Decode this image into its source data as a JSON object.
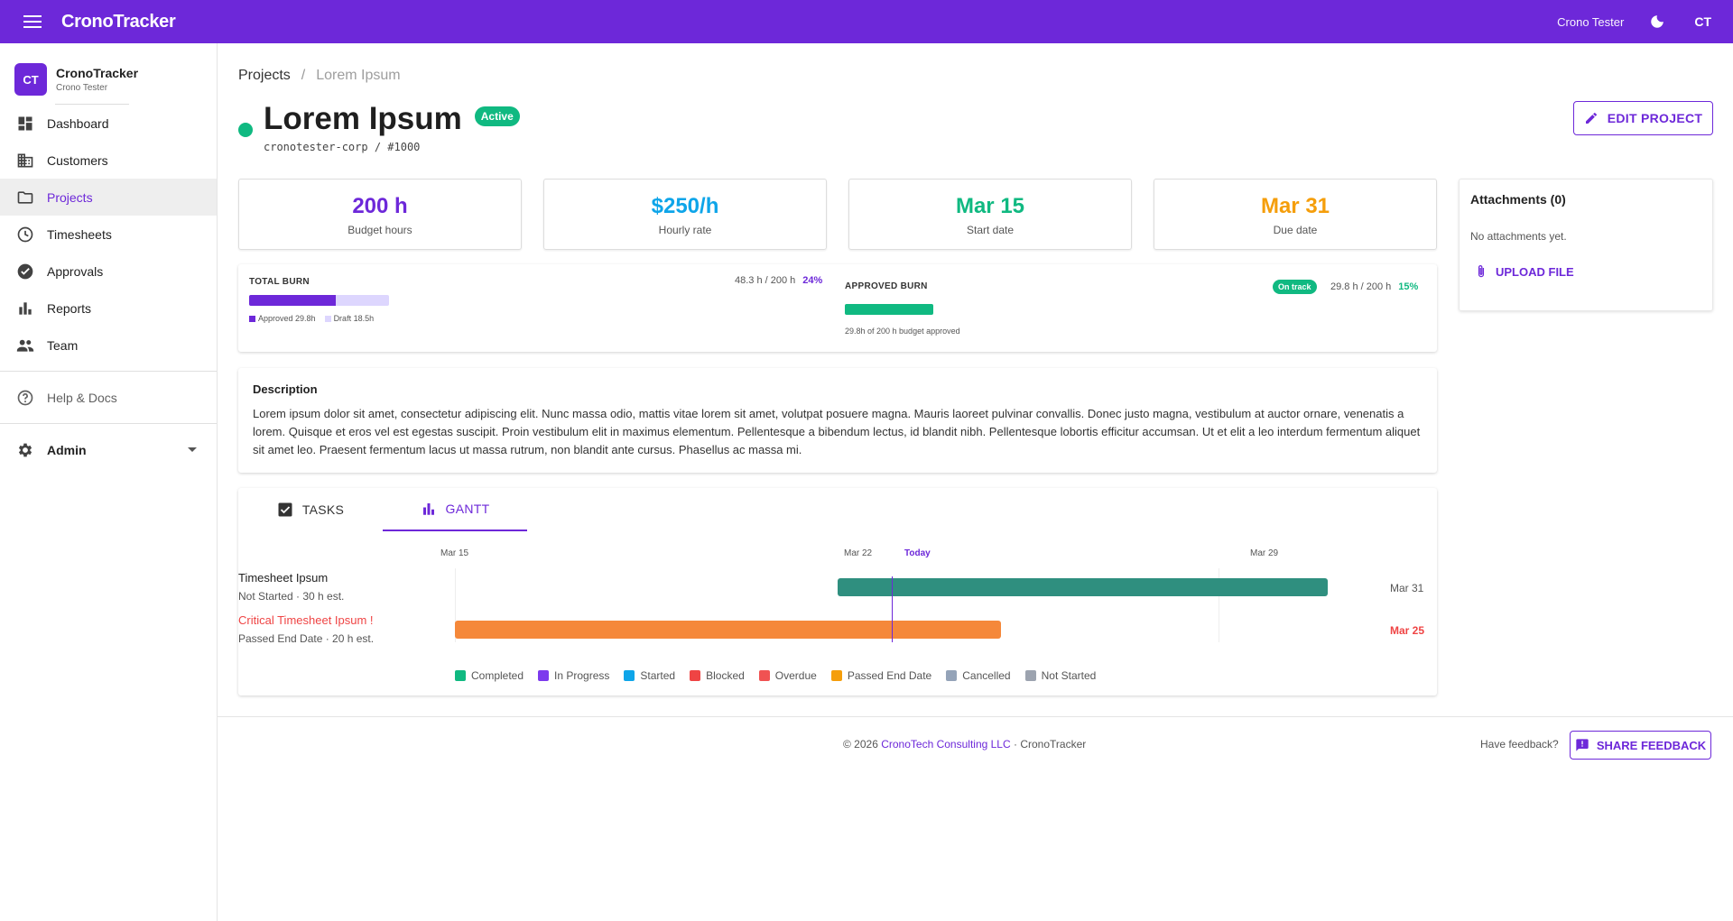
{
  "topbar": {
    "brand": "CronoTracker",
    "user_name": "Crono Tester",
    "initials": "CT"
  },
  "sidebar": {
    "org_initials": "CT",
    "org_name": "CronoTracker",
    "org_sub": "Crono Tester",
    "items": [
      {
        "label": "Dashboard",
        "icon": "dashboard-icon"
      },
      {
        "label": "Customers",
        "icon": "building-icon"
      },
      {
        "label": "Projects",
        "icon": "folder-icon"
      },
      {
        "label": "Timesheets",
        "icon": "clock-icon"
      },
      {
        "label": "Approvals",
        "icon": "check-circle-icon"
      },
      {
        "label": "Reports",
        "icon": "bar-chart-icon"
      },
      {
        "label": "Team",
        "icon": "people-icon"
      }
    ],
    "help": "Help & Docs",
    "admin": "Admin"
  },
  "breadcrumb": {
    "root": "Projects",
    "sep": "/",
    "current": "Lorem Ipsum"
  },
  "project": {
    "title": "Lorem Ipsum",
    "status": "Active",
    "subtitle": "cronotester-corp / #1000",
    "edit_label": "EDIT PROJECT"
  },
  "stats": [
    {
      "value": "200 h",
      "label": "Budget hours",
      "color": "#6d28d9"
    },
    {
      "value": "$250/h",
      "label": "Hourly rate",
      "color": "#0ea5e9"
    },
    {
      "value": "Mar 15",
      "label": "Start date",
      "color": "#10b981"
    },
    {
      "value": "Mar 31",
      "label": "Due date",
      "color": "#f59e0b"
    }
  ],
  "attachments": {
    "title": "Attachments (0)",
    "empty": "No attachments yet.",
    "upload": "UPLOAD FILE"
  },
  "burn": {
    "total": {
      "title": "TOTAL BURN",
      "stat": "48.3 h / 200 h",
      "pct": "24%",
      "approved_fraction": 0.149,
      "draft_fraction": 0.0925,
      "legend_approved": "Approved 29.8h",
      "legend_draft": "Draft 18.5h"
    },
    "approved": {
      "title": "APPROVED BURN",
      "badge": "On track",
      "stat": "29.8 h / 200 h",
      "pct": "15%",
      "fraction": 0.149,
      "note": "29.8h of 200 h budget approved"
    }
  },
  "description": {
    "title": "Description",
    "text": "Lorem ipsum dolor sit amet, consectetur adipiscing elit. Nunc massa odio, mattis vitae lorem sit amet, volutpat posuere magna. Mauris laoreet pulvinar convallis. Donec justo magna, vestibulum at auctor ornare, venenatis a lorem. Quisque et eros vel est egestas suscipit. Proin vestibulum elit in maximus elementum. Pellentesque a bibendum lectus, id blandit nibh. Pellentesque lobortis efficitur accumsan. Ut et elit a leo interdum fermentum aliquet sit amet leo. Praesent fermentum lacus ut massa rutrum, non blandit ante cursus. Phasellus ac massa mi."
  },
  "tabs": {
    "tasks": "TASKS",
    "gantt": "GANTT"
  },
  "gantt": {
    "axis": [
      "Mar 15",
      "Mar 22",
      "Today",
      "Mar 29"
    ],
    "tasks": [
      {
        "name": "Timesheet Ipsum",
        "sub": "Not Started · 30 h est.",
        "end": "Mar 31",
        "color": "#2f8f7f",
        "critical": false
      },
      {
        "name": "Critical Timesheet Ipsum !",
        "sub": "Passed End Date · 20 h est.",
        "end": "Mar 25",
        "color": "#f5883a",
        "critical": true
      }
    ],
    "legend": [
      {
        "label": "Completed",
        "color": "#10b981"
      },
      {
        "label": "In Progress",
        "color": "#7c3aed"
      },
      {
        "label": "Started",
        "color": "#0ea5e9"
      },
      {
        "label": "Blocked",
        "color": "#ef4444"
      },
      {
        "label": "Overdue",
        "color": "#f05252"
      },
      {
        "label": "Passed End Date",
        "color": "#f59e0b"
      },
      {
        "label": "Cancelled",
        "color": "#94a3b8"
      },
      {
        "label": "Not Started",
        "color": "#9ca3af"
      }
    ]
  },
  "footer": {
    "copyright": "© 2026",
    "company": "CronoTech Consulting LLC",
    "dot": "·",
    "app": "CronoTracker",
    "feedback_q": "Have feedback?",
    "share": "SHARE FEEDBACK"
  }
}
